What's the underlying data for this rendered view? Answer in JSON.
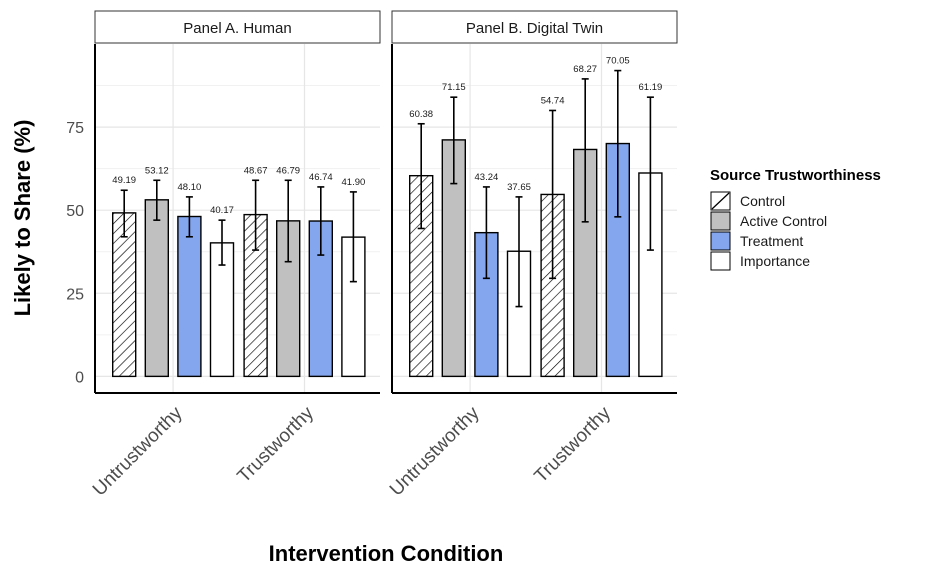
{
  "chart_data": {
    "type": "bar",
    "ylabel": "Likely to Share (%)",
    "xlabel": "Intervention Condition",
    "ylim": [
      -5,
      100
    ],
    "yticks": [
      0,
      25,
      50,
      75
    ],
    "grid": true,
    "legend": {
      "title": "Source Trustworthiness",
      "placement": "right",
      "entries": [
        {
          "label": "Control",
          "fill": "#ffffff",
          "hatched": true
        },
        {
          "label": "Active Control",
          "fill": "#c0c0c0",
          "hatched": false
        },
        {
          "label": "Treatment",
          "fill": "#84a6ef",
          "hatched": false
        },
        {
          "label": "Importance",
          "fill": "#ffffff",
          "hatched": false
        }
      ]
    },
    "categories": [
      "Untrustworthy",
      "Trustworthy"
    ],
    "panels": [
      {
        "title": "Panel A. Human",
        "groups": [
          {
            "category": "Untrustworthy",
            "bars": [
              {
                "series": "Control",
                "value": 49.19,
                "label": "49.19",
                "ci": [
                  42,
                  56
                ]
              },
              {
                "series": "Active Control",
                "value": 53.12,
                "label": "53.12",
                "ci": [
                  47,
                  59
                ]
              },
              {
                "series": "Treatment",
                "value": 48.1,
                "label": "48.10",
                "ci": [
                  42,
                  54
                ]
              },
              {
                "series": "Importance",
                "value": 40.17,
                "label": "40.17",
                "ci": [
                  33.5,
                  47
                ]
              }
            ]
          },
          {
            "category": "Trustworthy",
            "bars": [
              {
                "series": "Control",
                "value": 48.67,
                "label": "48.67",
                "ci": [
                  38,
                  59
                ]
              },
              {
                "series": "Active Control",
                "value": 46.79,
                "label": "46.79",
                "ci": [
                  34.5,
                  59
                ]
              },
              {
                "series": "Treatment",
                "value": 46.74,
                "label": "46.74",
                "ci": [
                  36.5,
                  57
                ]
              },
              {
                "series": "Importance",
                "value": 41.9,
                "label": "41.90",
                "ci": [
                  28.5,
                  55.5
                ]
              }
            ]
          }
        ]
      },
      {
        "title": "Panel B. Digital Twin",
        "groups": [
          {
            "category": "Untrustworthy",
            "bars": [
              {
                "series": "Control",
                "value": 60.38,
                "label": "60.38",
                "ci": [
                  44.5,
                  76
                ]
              },
              {
                "series": "Active Control",
                "value": 71.15,
                "label": "71.15",
                "ci": [
                  58,
                  84
                ]
              },
              {
                "series": "Treatment",
                "value": 43.24,
                "label": "43.24",
                "ci": [
                  29.5,
                  57
                ]
              },
              {
                "series": "Importance",
                "value": 37.65,
                "label": "37.65",
                "ci": [
                  21,
                  54
                ]
              }
            ]
          },
          {
            "category": "Trustworthy",
            "bars": [
              {
                "series": "Control",
                "value": 54.74,
                "label": "54.74",
                "ci": [
                  29.5,
                  80
                ]
              },
              {
                "series": "Active Control",
                "value": 68.27,
                "label": "68.27",
                "ci": [
                  46.5,
                  89.5
                ]
              },
              {
                "series": "Treatment",
                "value": 70.05,
                "label": "70.05",
                "ci": [
                  48,
                  92
                ]
              },
              {
                "series": "Importance",
                "value": 61.19,
                "label": "61.19",
                "ci": [
                  38,
                  84
                ]
              }
            ]
          }
        ]
      }
    ]
  }
}
